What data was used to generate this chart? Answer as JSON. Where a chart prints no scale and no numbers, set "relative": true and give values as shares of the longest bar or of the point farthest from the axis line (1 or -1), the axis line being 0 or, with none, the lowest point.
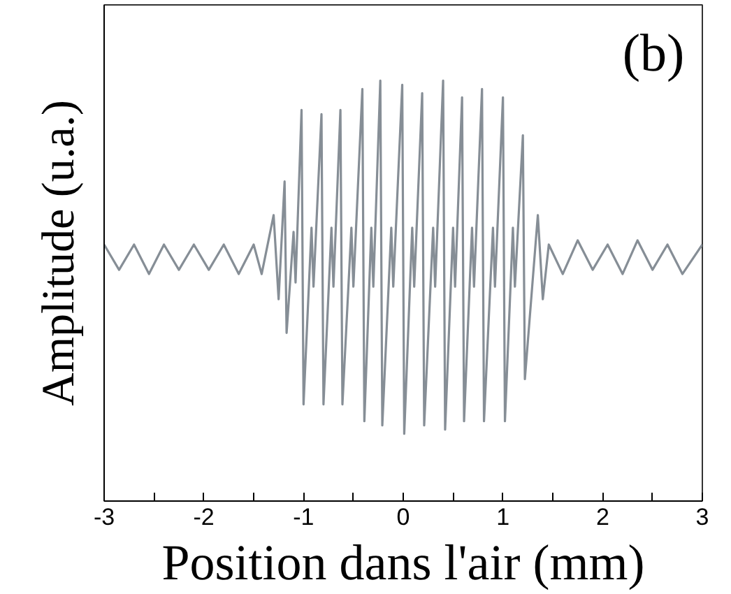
{
  "chart_data": {
    "type": "line",
    "relative": true,
    "xlabel": "Position dans l'air (mm)",
    "ylabel": "Amplitude (u.a.)",
    "annotations": [
      "(b)"
    ],
    "xlim": [
      -3,
      3
    ],
    "xticks": [
      -3,
      {
        "value": -2.5,
        "label": null
      },
      -2,
      {
        "value": -1.5,
        "label": null
      },
      -1,
      {
        "value": -0.5,
        "label": null
      },
      0,
      {
        "value": 0.5,
        "label": null
      },
      1,
      {
        "value": 1.5,
        "label": null
      },
      2,
      {
        "value": 2.5,
        "label": null
      },
      3
    ],
    "tick_labels": "x",
    "grid": false,
    "marker": "none",
    "line_style": "solid",
    "series": [
      {
        "color": "#868e96",
        "x": [
          -3.0,
          -2.85,
          -2.7,
          -2.55,
          -2.4,
          -2.25,
          -2.1,
          -1.95,
          -1.8,
          -1.65,
          -1.5,
          -1.42,
          -1.3,
          -1.25,
          -1.19,
          -1.17,
          -1.1,
          -1.08,
          -1.02,
          -1.0,
          -0.92,
          -0.9,
          -0.82,
          -0.8,
          -0.72,
          -0.7,
          -0.63,
          -0.61,
          -0.52,
          -0.5,
          -0.41,
          -0.39,
          -0.32,
          -0.3,
          -0.23,
          -0.21,
          -0.12,
          -0.1,
          -0.01,
          0.01,
          0.09,
          0.11,
          0.19,
          0.21,
          0.3,
          0.32,
          0.4,
          0.42,
          0.5,
          0.52,
          0.59,
          0.61,
          0.69,
          0.71,
          0.79,
          0.81,
          0.9,
          0.92,
          1.0,
          1.02,
          1.1,
          1.12,
          1.2,
          1.22,
          1.35,
          1.4,
          1.46,
          1.6,
          1.75,
          1.9,
          2.05,
          2.2,
          2.35,
          2.5,
          2.65,
          2.8,
          3.0
        ],
        "values": [
          0.61,
          0.55,
          0.61,
          0.54,
          0.61,
          0.55,
          0.61,
          0.55,
          0.61,
          0.54,
          0.61,
          0.54,
          0.68,
          0.48,
          0.76,
          0.4,
          0.64,
          0.52,
          0.93,
          0.23,
          0.65,
          0.51,
          0.92,
          0.23,
          0.65,
          0.51,
          0.93,
          0.23,
          0.65,
          0.51,
          0.98,
          0.19,
          0.65,
          0.51,
          1.0,
          0.18,
          0.65,
          0.51,
          0.99,
          0.16,
          0.65,
          0.51,
          0.97,
          0.18,
          0.65,
          0.51,
          1.0,
          0.17,
          0.65,
          0.51,
          0.96,
          0.19,
          0.65,
          0.51,
          0.98,
          0.19,
          0.65,
          0.51,
          0.96,
          0.19,
          0.65,
          0.51,
          0.87,
          0.29,
          0.68,
          0.48,
          0.61,
          0.54,
          0.62,
          0.55,
          0.61,
          0.54,
          0.62,
          0.55,
          0.61,
          0.54,
          0.61
        ]
      }
    ]
  }
}
